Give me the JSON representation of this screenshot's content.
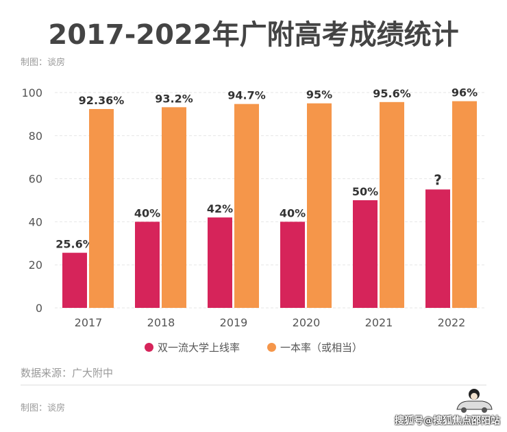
{
  "title": "2017-2022年广附高考成绩统计",
  "credit_top": "制图：谈房",
  "credit_bottom": "制图：谈房",
  "source": "数据来源：广大附中",
  "watermark": "搜狐号@搜狐焦点邵阳站",
  "colors": {
    "series1": "#d6245a",
    "series2": "#f5964a"
  },
  "chart_data": {
    "type": "bar",
    "categories": [
      "2017",
      "2018",
      "2019",
      "2020",
      "2021",
      "2022"
    ],
    "series": [
      {
        "name": "双一流大学上线率",
        "values": [
          25.6,
          40,
          42,
          40,
          50,
          55
        ],
        "labels": [
          "25.6%",
          "40%",
          "42%",
          "40%",
          "50%",
          "?"
        ]
      },
      {
        "name": "一本率（或相当）",
        "values": [
          92.36,
          93.2,
          94.7,
          95,
          95.6,
          96
        ],
        "labels": [
          "92.36%",
          "93.2%",
          "94.7%",
          "95%",
          "95.6%",
          "96%"
        ]
      }
    ],
    "yticks": [
      "0",
      "20",
      "40",
      "60",
      "80",
      "100"
    ],
    "ylim": [
      0,
      100
    ],
    "grid": true,
    "legend": "bottom"
  }
}
